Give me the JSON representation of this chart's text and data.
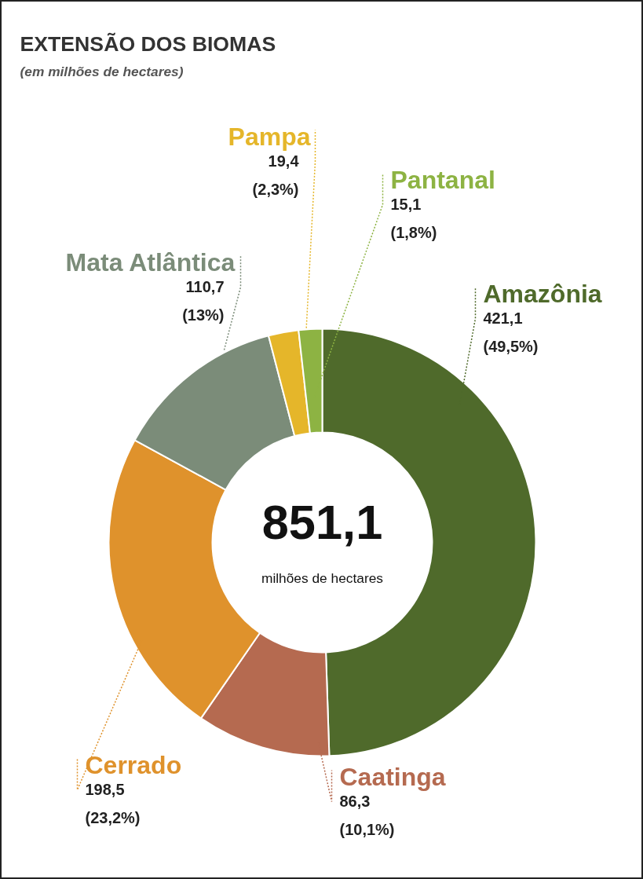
{
  "chart_data": {
    "type": "donut",
    "title": "EXTENSÃO DOS BIOMAS",
    "subtitle": "(em milhões de hectares)",
    "categories": [
      "Amazônia",
      "Caatinga",
      "Cerrado",
      "Mata Atlântica",
      "Pampa",
      "Pantanal"
    ],
    "values": [
      421.1,
      86.3,
      198.5,
      110.7,
      19.4,
      15.1
    ],
    "colors": [
      "#4f6a2b",
      "#b56a50",
      "#df922c",
      "#7b8c79",
      "#e5b62a",
      "#8db343"
    ],
    "value_labels": [
      "421,1\n(49,5%)",
      "86,3\n(10,1%)",
      "198,5\n(23,2%)",
      "110,7\n(13%)",
      "19,4\n(2,3%)",
      "15,1\n(1,8%)"
    ],
    "annotations": [
      "851,1",
      "milhões de hectares"
    ]
  }
}
